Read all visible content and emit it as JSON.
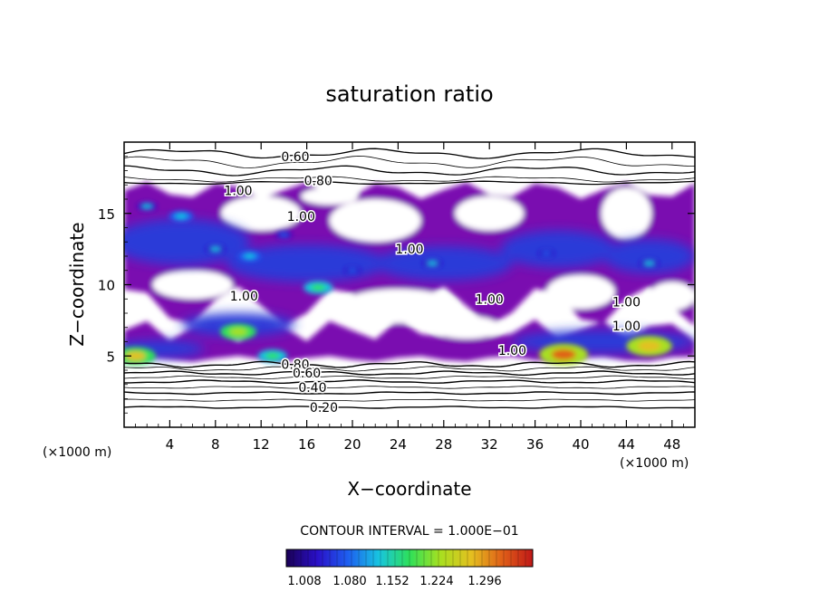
{
  "chart_data": {
    "type": "heatmap",
    "title": "saturation ratio",
    "xlabel": "X−coordinate",
    "ylabel": "Z−coordinate",
    "x_unit": "(×1000 m)",
    "z_unit": "(×1000 m)",
    "xlim": [
      0,
      50
    ],
    "ylim": [
      0,
      20
    ],
    "x_ticks": [
      4,
      8,
      12,
      16,
      20,
      24,
      28,
      32,
      36,
      40,
      44,
      48
    ],
    "y_ticks": [
      5,
      10,
      15
    ],
    "contour_interval_text": "CONTOUR INTERVAL = 1.000E−01",
    "contour_labels": [
      {
        "text": "0.60",
        "x": 15,
        "z": 19.0
      },
      {
        "text": "0.80",
        "x": 17,
        "z": 17.3
      },
      {
        "text": "1.00",
        "x": 10,
        "z": 16.6
      },
      {
        "text": "1.00",
        "x": 15.5,
        "z": 14.8
      },
      {
        "text": "1.00",
        "x": 25,
        "z": 12.5
      },
      {
        "text": "1.00",
        "x": 10.5,
        "z": 9.2
      },
      {
        "text": "1.00",
        "x": 32,
        "z": 9.0
      },
      {
        "text": "1.00",
        "x": 44,
        "z": 8.8
      },
      {
        "text": "1.00",
        "x": 44,
        "z": 7.1
      },
      {
        "text": "1.00",
        "x": 34,
        "z": 5.4
      },
      {
        "text": "0.80",
        "x": 15,
        "z": 4.4
      },
      {
        "text": "0.60",
        "x": 16,
        "z": 3.8
      },
      {
        "text": "0.40",
        "x": 16.5,
        "z": 2.8
      },
      {
        "text": "0.20",
        "x": 17.5,
        "z": 1.4
      }
    ],
    "colorbar": {
      "ticks": [
        "1.008",
        "1.080",
        "1.152",
        "1.224",
        "1.296"
      ],
      "min": 1.0,
      "max": 1.35,
      "colors": [
        "#1a0055",
        "#2a10c8",
        "#1e5ff0",
        "#18c4e0",
        "#2ee05a",
        "#a8e020",
        "#e4c020",
        "#e06018",
        "#c01818"
      ]
    },
    "supersaturated_regions": [
      {
        "x": 2,
        "z": 15.5,
        "peak": 1.12
      },
      {
        "x": 5,
        "z": 14.8,
        "peak": 1.15
      },
      {
        "x": 8,
        "z": 12.5,
        "peak": 1.12
      },
      {
        "x": 11,
        "z": 12.0,
        "peak": 1.14
      },
      {
        "x": 14,
        "z": 13.5,
        "peak": 1.1
      },
      {
        "x": 17,
        "z": 9.8,
        "peak": 1.18
      },
      {
        "x": 20,
        "z": 11.0,
        "peak": 1.1
      },
      {
        "x": 27,
        "z": 11.5,
        "peak": 1.12
      },
      {
        "x": 37,
        "z": 12.2,
        "peak": 1.1
      },
      {
        "x": 46,
        "z": 11.5,
        "peak": 1.12
      },
      {
        "x": 10,
        "z": 6.7,
        "peak": 1.22
      },
      {
        "x": 1,
        "z": 5.0,
        "peak": 1.25
      },
      {
        "x": 13,
        "z": 5.0,
        "peak": 1.18
      },
      {
        "x": 38.5,
        "z": 5.1,
        "peak": 1.3
      },
      {
        "x": 46,
        "z": 5.7,
        "peak": 1.28
      }
    ]
  }
}
